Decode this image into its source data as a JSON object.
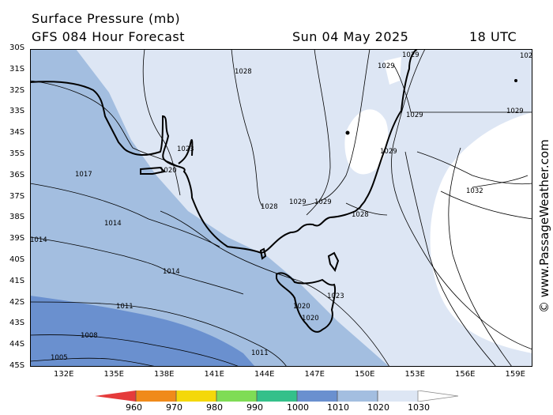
{
  "header": {
    "title": "Surface Pressure (mb)",
    "subtitle": "GFS 084 Hour Forecast",
    "date": "Sun 04 May 2025",
    "time": "18 UTC"
  },
  "credit": "© www.PassageWeather.com",
  "axes": {
    "lat_labels": [
      "30S",
      "31S",
      "32S",
      "33S",
      "34S",
      "35S",
      "36S",
      "37S",
      "38S",
      "39S",
      "40S",
      "41S",
      "42S",
      "43S",
      "44S",
      "45S"
    ],
    "lon_labels": [
      "132E",
      "135E",
      "138E",
      "141E",
      "144E",
      "147E",
      "150E",
      "153E",
      "156E",
      "159E"
    ]
  },
  "isobar_labels": [
    "1029",
    "1029",
    "1029",
    "1029",
    "1029",
    "1028",
    "1023",
    "1020",
    "1017",
    "1014",
    "1014",
    "1014",
    "1011",
    "1011",
    "1008",
    "1005",
    "1028",
    "1029",
    "1029",
    "1028",
    "1032",
    "1023",
    "1020",
    "1020",
    "102"
  ],
  "colorbar": {
    "labels": [
      "960",
      "970",
      "980",
      "990",
      "1000",
      "1010",
      "1020",
      "1030"
    ],
    "colors": [
      "#e53b3b",
      "#f08a1a",
      "#f4d80a",
      "#7fdc55",
      "#34c08a",
      "#6a90cf",
      "#a3bee0",
      "#dde6f4"
    ]
  },
  "colors": {
    "band_1000_1010": "#6a90cf",
    "band_1010_1020": "#a3bee0",
    "band_1020_1030": "#dde6f4",
    "band_above_1030": "#ffffff"
  }
}
